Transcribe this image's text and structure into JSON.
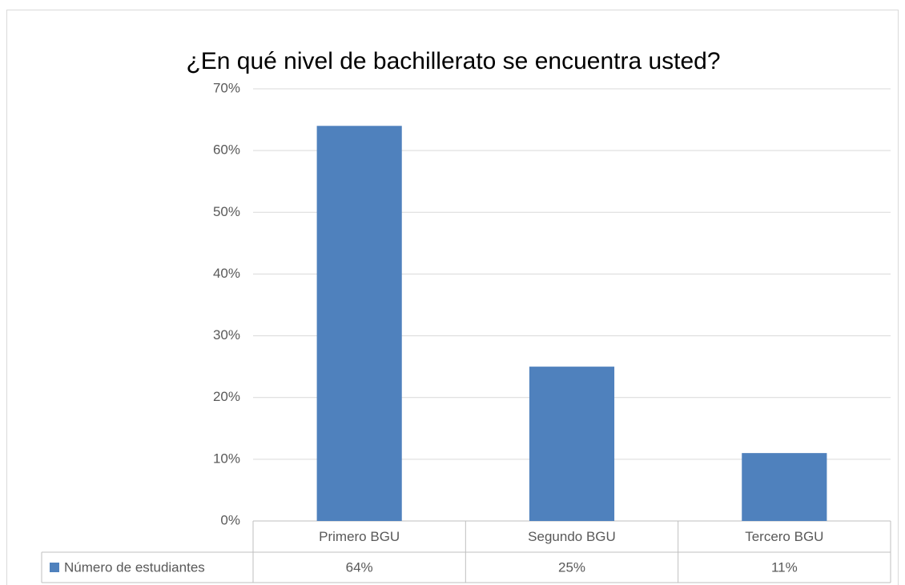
{
  "chart_data": {
    "type": "bar",
    "title": "¿En qué nivel de bachillerato se encuentra usted?",
    "categories": [
      "Primero BGU",
      "Segundo BGU",
      "Tercero BGU"
    ],
    "series": [
      {
        "name": "Número de estudiantes",
        "color": "#4f81bd",
        "values": [
          64,
          25,
          11
        ],
        "value_labels": [
          "64%",
          "25%",
          "11%"
        ]
      }
    ],
    "ylim": [
      0,
      70
    ],
    "yticks": [
      {
        "value": 0,
        "label": "0%"
      },
      {
        "value": 10,
        "label": "10%"
      },
      {
        "value": 20,
        "label": "20%"
      },
      {
        "value": 30,
        "label": "30%"
      },
      {
        "value": 40,
        "label": "40%"
      },
      {
        "value": 50,
        "label": "50%"
      },
      {
        "value": 60,
        "label": "60%"
      },
      {
        "value": 70,
        "label": "70%"
      }
    ],
    "grid": true
  }
}
